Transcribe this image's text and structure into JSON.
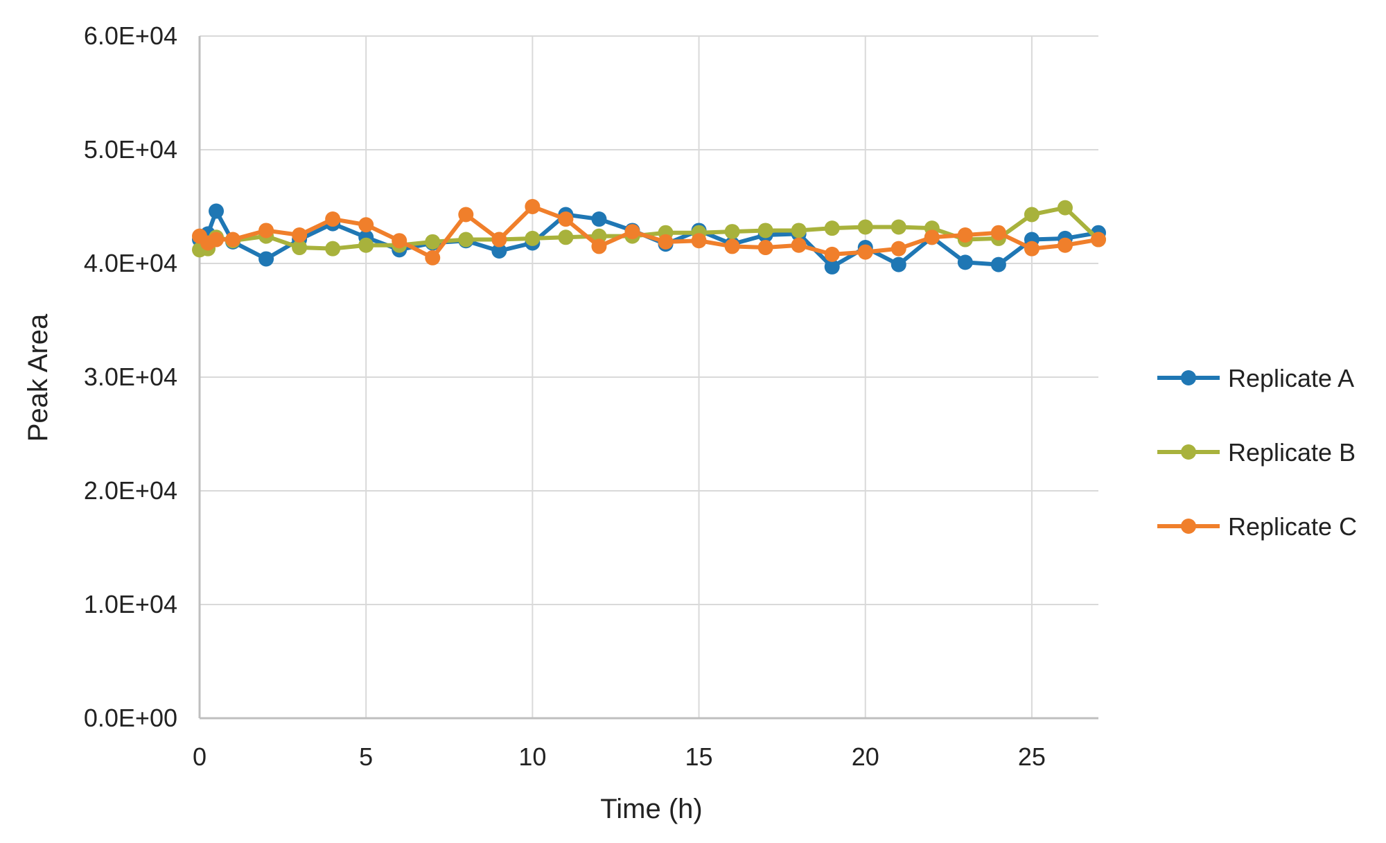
{
  "chart_data": {
    "type": "line",
    "title": "",
    "xlabel": "Time (h)",
    "ylabel": "Peak Area",
    "xlim": [
      0,
      27
    ],
    "ylim": [
      0,
      60000
    ],
    "x_ticks": [
      0,
      5,
      10,
      15,
      20,
      25
    ],
    "x_tick_labels": [
      "0",
      "5",
      "10",
      "15",
      "20",
      "25"
    ],
    "y_ticks": [
      0,
      10000,
      20000,
      30000,
      40000,
      50000,
      60000
    ],
    "y_tick_labels": [
      "0.0E+00",
      "1.0E+04",
      "2.0E+04",
      "3.0E+04",
      "4.0E+04",
      "5.0E+04",
      "6.0E+04"
    ],
    "grid": true,
    "legend_position": "right",
    "x": [
      0,
      0.25,
      0.5,
      1,
      2,
      3,
      4,
      5,
      6,
      7,
      8,
      9,
      10,
      11,
      12,
      13,
      14,
      15,
      16,
      17,
      18,
      19,
      20,
      21,
      22,
      23,
      24,
      25,
      26,
      27
    ],
    "series": [
      {
        "name": "Replicate A",
        "color": "#1f77b4",
        "values": [
          42100,
          42600,
          44600,
          41900,
          40400,
          42100,
          43500,
          42300,
          41200,
          41800,
          42000,
          41100,
          41800,
          44300,
          43900,
          42900,
          41700,
          42900,
          41700,
          42500,
          42600,
          39700,
          41400,
          39900,
          42300,
          40100,
          39900,
          42100,
          42200,
          42700
        ]
      },
      {
        "name": "Replicate B",
        "color": "#a8b23c",
        "values": [
          41200,
          41300,
          42300,
          42000,
          42400,
          41400,
          41300,
          41600,
          41600,
          41900,
          42100,
          42100,
          42200,
          42300,
          42400,
          42400,
          42700,
          42700,
          42800,
          42900,
          42900,
          43100,
          43200,
          43200,
          43100,
          42100,
          42200,
          44300,
          44900,
          42100
        ]
      },
      {
        "name": "Replicate C",
        "color": "#f07f2b",
        "values": [
          42400,
          41800,
          42100,
          42100,
          42900,
          42500,
          43900,
          43400,
          42000,
          40500,
          44300,
          42100,
          45000,
          43900,
          41500,
          42800,
          41900,
          42000,
          41500,
          41400,
          41600,
          40800,
          41000,
          41300,
          42300,
          42500,
          42700,
          41300,
          41600,
          42100
        ]
      }
    ]
  }
}
